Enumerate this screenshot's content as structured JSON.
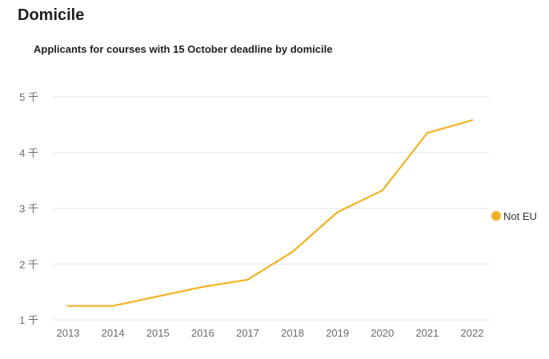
{
  "page": {
    "section_title": "Domicile"
  },
  "colors": {
    "series": "#F5B123",
    "grid": "#e6e6e6",
    "tick_text": "#6b6b6b"
  },
  "chart_data": {
    "type": "line",
    "title": "Applicants for courses with 15 October deadline by domicile",
    "xlabel": "",
    "ylabel": "",
    "categories": [
      "2013",
      "2014",
      "2015",
      "2016",
      "2017",
      "2018",
      "2019",
      "2020",
      "2021",
      "2022"
    ],
    "series": [
      {
        "name": "Not EU",
        "values": [
          1250,
          1250,
          1420,
          1590,
          1720,
          2220,
          2930,
          3320,
          4350,
          4580
        ]
      }
    ],
    "ylim": [
      1000,
      5000
    ],
    "y_ticks": [
      {
        "value": 1000,
        "label": "1 千"
      },
      {
        "value": 2000,
        "label": "2 千"
      },
      {
        "value": 3000,
        "label": "3 千"
      },
      {
        "value": 4000,
        "label": "4 千"
      },
      {
        "value": 5000,
        "label": "5 千"
      }
    ],
    "grid": true,
    "legend_position": "right"
  }
}
